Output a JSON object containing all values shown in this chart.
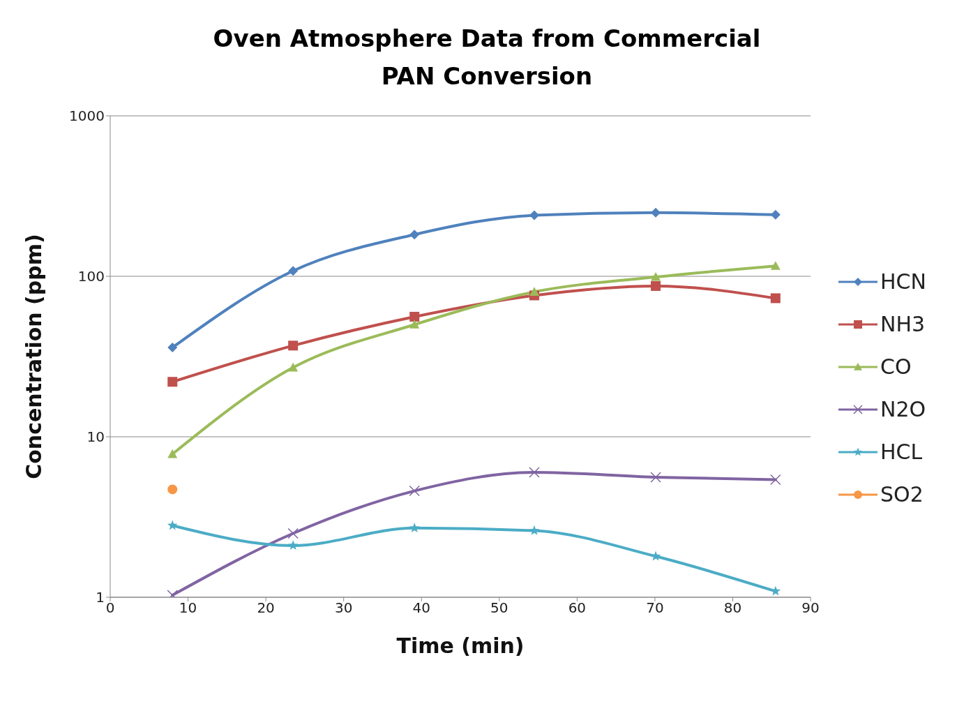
{
  "chart_data": {
    "type": "line",
    "title": "Oven Atmosphere Data from Commercial PAN Conversion",
    "xlabel": "Time (min)",
    "ylabel": "Concentration (ppm)",
    "x": [
      8,
      23.5,
      39.1,
      54.5,
      70.1,
      85.5
    ],
    "series": [
      {
        "name": "HCN",
        "color": "#4f81bd",
        "marker": "diamond",
        "values": [
          36,
          108,
          182,
          240,
          249,
          242
        ]
      },
      {
        "name": "NH3",
        "color": "#c0504d",
        "marker": "square",
        "values": [
          22,
          37,
          56,
          76,
          87,
          73
        ]
      },
      {
        "name": "CO",
        "color": "#9bbb59",
        "marker": "triangle",
        "values": [
          7.8,
          27,
          50,
          80,
          99,
          116
        ]
      },
      {
        "name": "N2O",
        "color": "#8064a2",
        "marker": "cross",
        "values": [
          1.03,
          2.5,
          4.6,
          6.0,
          5.6,
          5.4
        ]
      },
      {
        "name": "HCL",
        "color": "#4bacc6",
        "marker": "star",
        "values": [
          2.8,
          2.1,
          2.7,
          2.6,
          1.8,
          1.09
        ]
      },
      {
        "name": "SO2",
        "color": "#f79646",
        "marker": "circle",
        "values": [
          4.7,
          null,
          null,
          null,
          null,
          null
        ]
      }
    ],
    "log": "y",
    "xlim": [
      0,
      90
    ],
    "xticks": [
      0,
      10,
      20,
      30,
      40,
      50,
      60,
      70,
      80,
      90
    ],
    "ylim": [
      1,
      1000
    ],
    "yticks": [
      1,
      10,
      100,
      1000
    ],
    "grid": "y",
    "legend": "right",
    "line_style": "solid"
  }
}
